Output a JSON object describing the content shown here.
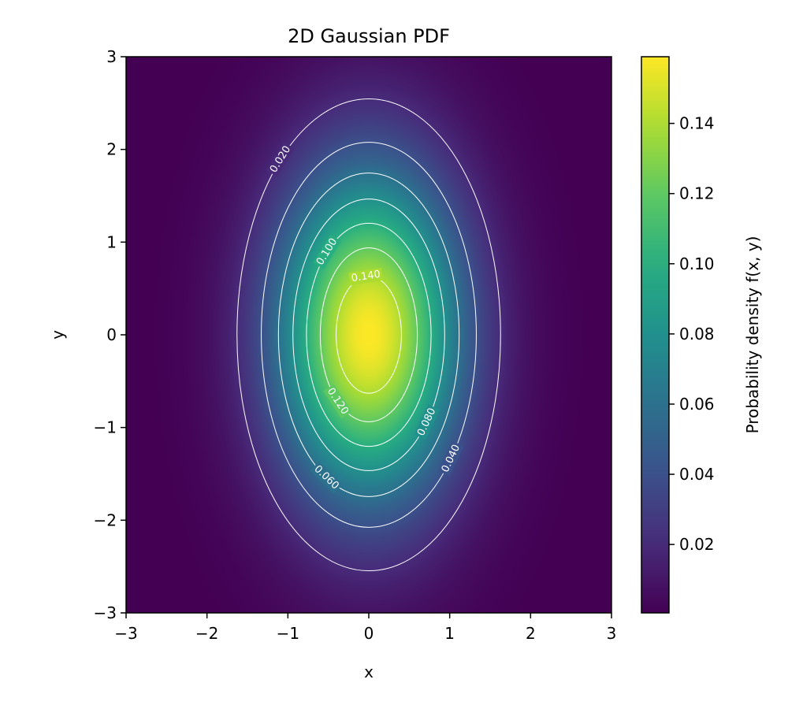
{
  "chart_data": {
    "type": "heatmap",
    "title": "2D Gaussian PDF",
    "xlabel": "x",
    "ylabel": "y",
    "xlim": [
      -3,
      3
    ],
    "ylim": [
      -3,
      3
    ],
    "x_ticks": [
      -3,
      -2,
      -1,
      0,
      1,
      2,
      3
    ],
    "y_ticks": [
      -3,
      -2,
      -1,
      0,
      1,
      2,
      3
    ],
    "x_tick_labels": [
      "−3",
      "−2",
      "−1",
      "0",
      "1",
      "2",
      "3"
    ],
    "y_tick_labels": [
      "−3",
      "−2",
      "−1",
      "0",
      "1",
      "2",
      "3"
    ],
    "distribution": {
      "mean_x": 0,
      "mean_y": 0,
      "sigma_x": 0.8,
      "sigma_y": 1.25,
      "peak_density": 0.159
    },
    "colormap": "viridis",
    "colorbar": {
      "label": "Probability density f(x, y)",
      "range": [
        0.0005,
        0.159
      ],
      "ticks": [
        0.02,
        0.04,
        0.06,
        0.08,
        0.1,
        0.12,
        0.14
      ],
      "tick_labels": [
        "0.02",
        "0.04",
        "0.06",
        "0.08",
        "0.10",
        "0.12",
        "0.14"
      ]
    },
    "contours": {
      "levels": [
        0.02,
        0.04,
        0.06,
        0.08,
        0.1,
        0.12,
        0.14
      ],
      "color": "#ffffff",
      "labels": [
        {
          "level": 0.02,
          "text": "0.020",
          "angle_deg": 132
        },
        {
          "level": 0.04,
          "text": "0.040",
          "angle_deg": -40
        },
        {
          "level": 0.06,
          "text": "0.060",
          "angle_deg": -118
        },
        {
          "level": 0.08,
          "text": "0.080",
          "angle_deg": -40
        },
        {
          "level": 0.1,
          "text": "0.100",
          "angle_deg": 132
        },
        {
          "level": 0.12,
          "text": "0.120",
          "angle_deg": -130
        },
        {
          "level": 0.14,
          "text": "0.140",
          "angle_deg": 95
        }
      ]
    },
    "grid": false
  }
}
